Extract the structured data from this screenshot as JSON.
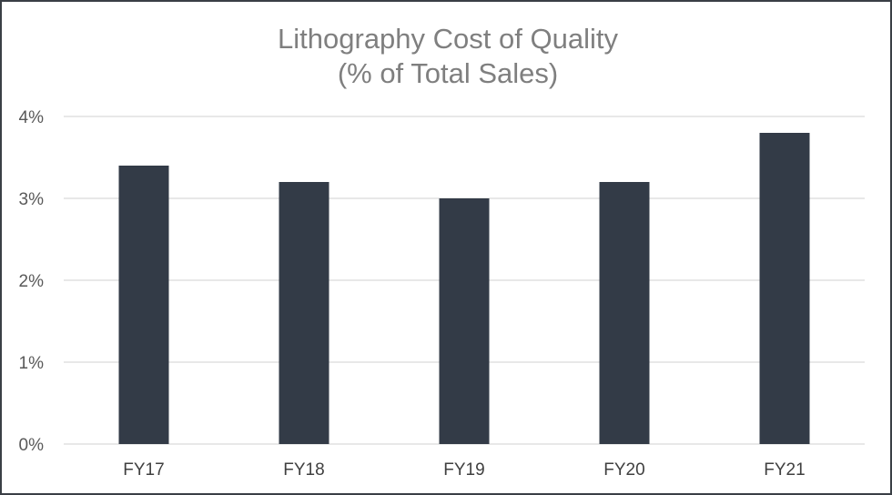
{
  "chart_data": {
    "type": "bar",
    "title": "Lithography Cost of Quality",
    "subtitle": "(% of Total Sales)",
    "categories": [
      "FY17",
      "FY18",
      "FY19",
      "FY20",
      "FY21"
    ],
    "values": [
      3.4,
      3.2,
      3.0,
      3.2,
      3.8
    ],
    "unit": "%",
    "ylim": [
      0,
      4
    ],
    "yticks": [
      "0%",
      "1%",
      "2%",
      "3%",
      "4%"
    ],
    "grid": true,
    "legend": "none",
    "bar_color": "#333b47",
    "grid_color": "#d9d9d9"
  }
}
